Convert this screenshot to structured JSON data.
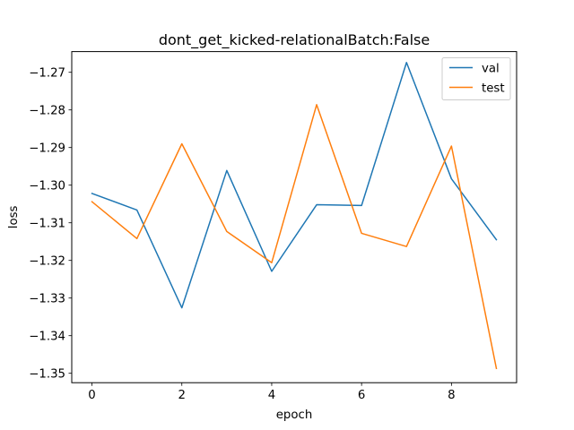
{
  "chart_data": {
    "type": "line",
    "title": "dont_get_kicked-relationalBatch:False",
    "xlabel": "epoch",
    "ylabel": "loss",
    "x": [
      0,
      1,
      2,
      3,
      4,
      5,
      6,
      7,
      8,
      9
    ],
    "xlim": [
      -0.45,
      9.45
    ],
    "ylim": [
      -1.3525,
      -1.2645
    ],
    "xticks": [
      0,
      2,
      4,
      6,
      8
    ],
    "xtick_labels": [
      "0",
      "2",
      "4",
      "6",
      "8"
    ],
    "yticks": [
      -1.35,
      -1.34,
      -1.33,
      -1.32,
      -1.31,
      -1.3,
      -1.29,
      -1.28,
      -1.27
    ],
    "ytick_labels": [
      "−1.35",
      "−1.34",
      "−1.33",
      "−1.32",
      "−1.31",
      "−1.30",
      "−1.29",
      "−1.28",
      "−1.27"
    ],
    "grid": false,
    "legend_position": "top-right",
    "series": [
      {
        "name": "val",
        "color": "#1f77b4",
        "values": [
          -1.3022,
          -1.3066,
          -1.3326,
          -1.2961,
          -1.3229,
          -1.3052,
          -1.3054,
          -1.2674,
          -1.2983,
          -1.3145
        ]
      },
      {
        "name": "test",
        "color": "#ff7f0e",
        "values": [
          -1.3044,
          -1.3142,
          -1.289,
          -1.3123,
          -1.3206,
          -1.2786,
          -1.3128,
          -1.3163,
          -1.2896,
          -1.3487
        ]
      }
    ]
  }
}
